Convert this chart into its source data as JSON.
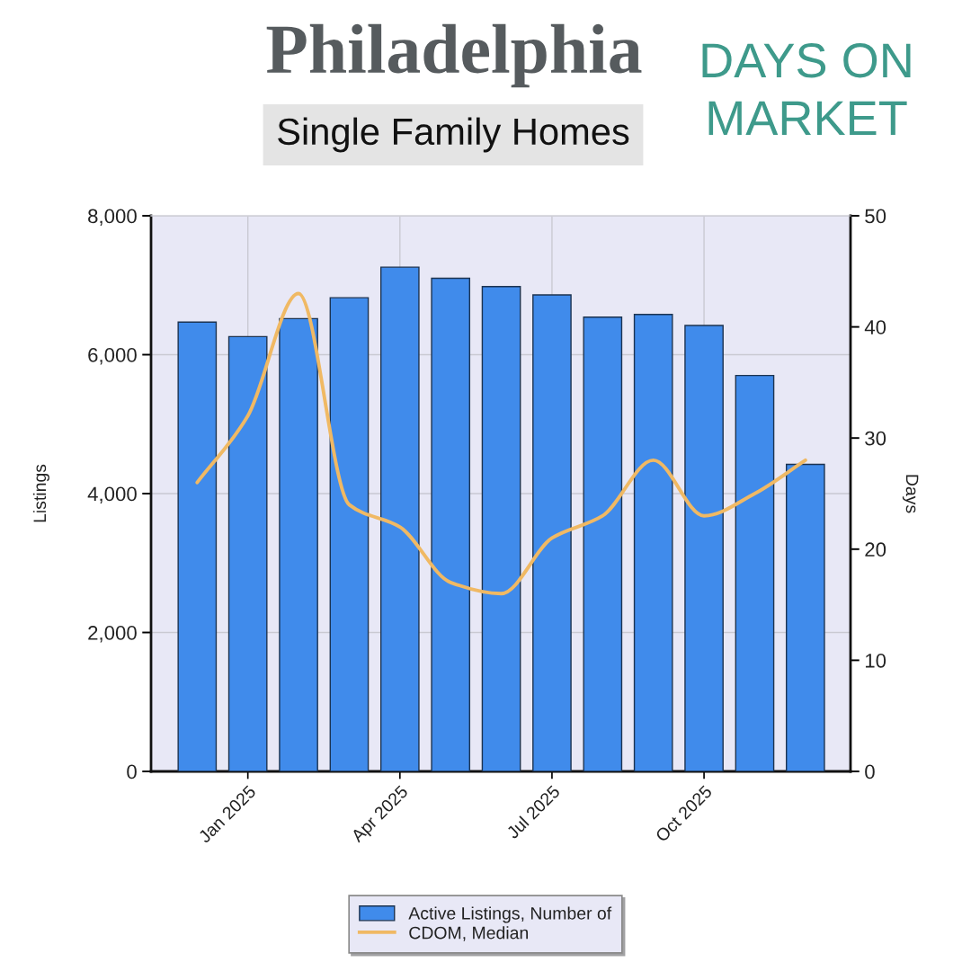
{
  "chart_data": {
    "type": "bar",
    "title": "Philadelphia",
    "subtitle": "Single Family Homes",
    "annotations": [
      "DAYS ON MARKET"
    ],
    "ylabel": "Listings",
    "y2label": "Days",
    "categories": [
      null,
      "Jan 2025",
      null,
      null,
      "Apr 2025",
      null,
      null,
      "Jul 2025",
      null,
      null,
      "Oct 2025",
      null,
      null
    ],
    "series": [
      {
        "name": "Active Listings, Number of",
        "color": "#408beb",
        "values": [
          6470,
          6260,
          6520,
          6820,
          7260,
          7100,
          6980,
          6860,
          6540,
          6580,
          6420,
          5700,
          4420
        ]
      },
      {
        "name": "CDOM, Median",
        "type": "line",
        "axis": "y2",
        "color": "#f0b964",
        "values": [
          26,
          32,
          43,
          24,
          22,
          17,
          16,
          21,
          23,
          28,
          23,
          25,
          28
        ]
      }
    ],
    "ylim": [
      0,
      8000
    ],
    "yticks": [
      0,
      {
        "value": 2000,
        "label": "2,000"
      },
      {
        "value": 4000,
        "label": "4,000"
      },
      {
        "value": 6000,
        "label": "6,000"
      },
      {
        "value": 8000,
        "label": "8,000"
      }
    ],
    "y2lim": [
      0,
      50
    ],
    "y2ticks": [
      0,
      10,
      20,
      30,
      40,
      50
    ],
    "grid": true,
    "legend": "bottom"
  }
}
